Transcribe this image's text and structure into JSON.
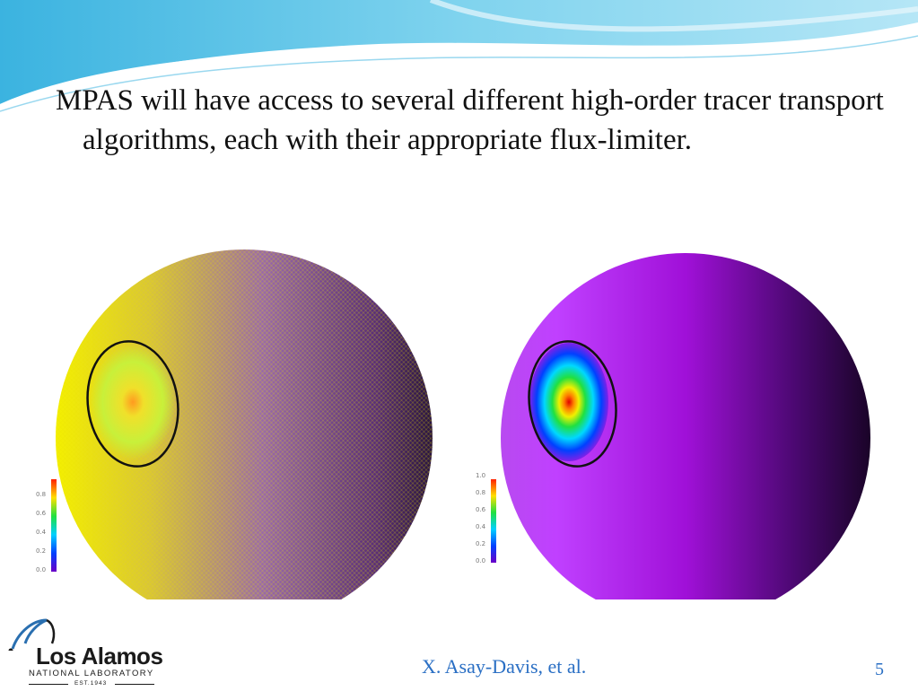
{
  "slide": {
    "bullet": "MPAS will have access to several different high-order tracer transport algorithms, each with their appropriate flux-limiter.",
    "footer_credit": "X. Asay-Davis, et al.",
    "page_number": "5"
  },
  "figures": {
    "left": {
      "colorbar_ticks": [
        "0.8",
        "0.6",
        "0.4",
        "0.2",
        "0.0"
      ]
    },
    "right": {
      "colorbar_ticks": [
        "1.0",
        "0.8",
        "0.6",
        "0.4",
        "0.2",
        "0.0"
      ]
    }
  },
  "logo": {
    "name": "Los Alamos",
    "subtitle": "NATIONAL LABORATORY",
    "established": "EST.1943"
  },
  "colors": {
    "header_blue": "#5bc4e6",
    "footer_text": "#2a6fc4"
  }
}
